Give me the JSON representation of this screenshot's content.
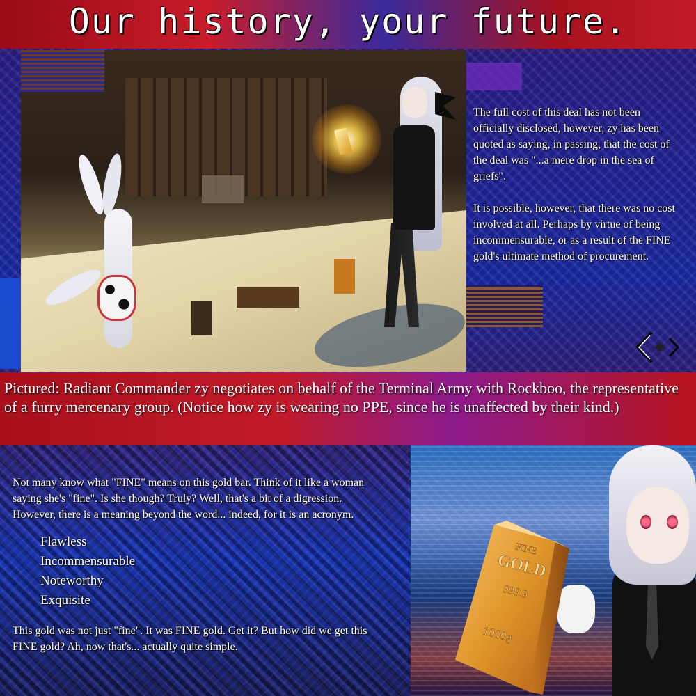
{
  "title": "Our history, your future.",
  "right_text": {
    "paragraph1": "The full cost of this deal has not been officially disclosed, however, zy has been quoted as saying, in passing, that the cost of the deal was \"...a mere drop in the sea of griefs\".",
    "paragraph2": "It is possible, however, that there was no cost involved at all. Perhaps by virtue of being incommensurable, or as a result of the FINE gold's ultimate method of procurement."
  },
  "caption": "Pictured: Radiant Commander zy negotiates on behalf of the Terminal Army with Rockboo, the representative of a furry mercenary group. (Notice how zy is wearing no PPE, since he is unaffected by their kind.)",
  "bottom": {
    "intro": "Not many know what \"FINE\" means on this gold bar. Think of it like a woman saying she's \"fine\". Is she though? Truly? Well, that's a bit of a digression. However, there is a meaning beyond the word... indeed, for it is an acronym.",
    "acronym": [
      "Flawless",
      "Incommensurable",
      "Noteworthy",
      "Exquisite"
    ],
    "outro": "This gold was not just \"fine\". It was FINE gold. Get it? But how did we get this FINE gold? Ah, now that's... actually quite simple."
  },
  "gold_bar": {
    "line1": "FINE",
    "line2": "GOLD",
    "purity": "999.9",
    "weight": "1000g"
  },
  "colors": {
    "band_red": "#c21a28",
    "band_blue": "#1b2aa8",
    "gold": "#e0962a",
    "text": "#ffffff"
  }
}
